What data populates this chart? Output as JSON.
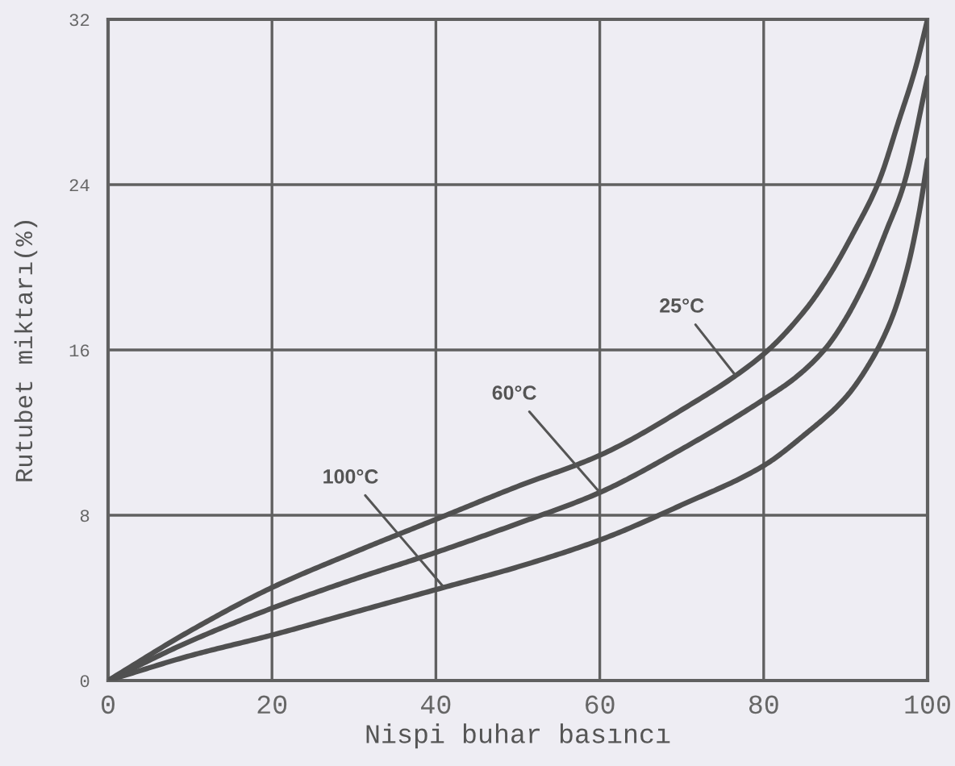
{
  "chart_data": {
    "type": "line",
    "xlabel": "Nispi buhar basıncı",
    "ylabel": "Rutubet miktarı(%)",
    "xlim": [
      0,
      100
    ],
    "xticks": [
      0,
      20,
      40,
      60,
      80,
      100
    ],
    "ylim": [
      0,
      32
    ],
    "yticks": [
      0,
      8,
      16,
      24,
      32
    ],
    "grid": true,
    "legend": false,
    "marker": "none",
    "line_style": "solid",
    "series": [
      {
        "color": "#505050",
        "x": [
          0,
          10,
          20,
          30,
          40,
          50,
          60,
          70,
          80,
          85,
          88,
          91,
          94,
          96.5,
          98.5,
          100
        ],
        "values": [
          0,
          2.4,
          4.5,
          6.2,
          7.8,
          9.4,
          10.9,
          13.1,
          15.8,
          17.9,
          19.6,
          21.7,
          24.1,
          27.1,
          29.6,
          32
        ]
      },
      {
        "color": "#505050",
        "x": [
          0,
          10,
          20,
          30,
          40,
          50,
          60,
          70,
          80,
          84,
          87.6,
          90,
          92.5,
          95,
          97.1,
          100
        ],
        "values": [
          0,
          1.9,
          3.5,
          4.9,
          6.2,
          7.6,
          9.1,
          11.2,
          13.6,
          14.7,
          16.1,
          17.5,
          19.4,
          21.8,
          24,
          29.2
        ]
      },
      {
        "color": "#505050",
        "x": [
          0,
          10,
          20,
          30,
          40,
          50,
          60,
          70,
          80,
          85,
          90,
          93,
          95.5,
          97.5,
          99,
          100
        ],
        "values": [
          0,
          1.2,
          2.2,
          3.3,
          4.4,
          5.5,
          6.8,
          8.5,
          10.4,
          11.9,
          13.7,
          15.4,
          17.4,
          19.9,
          22.7,
          25.2
        ]
      }
    ],
    "annotations": [
      {
        "text": "25°C",
        "x": 76.5,
        "y": 14.8
      },
      {
        "text": "60°C",
        "x": 60,
        "y": 9.1
      },
      {
        "text": "100°C",
        "x": 41,
        "y": 4.5
      }
    ]
  }
}
